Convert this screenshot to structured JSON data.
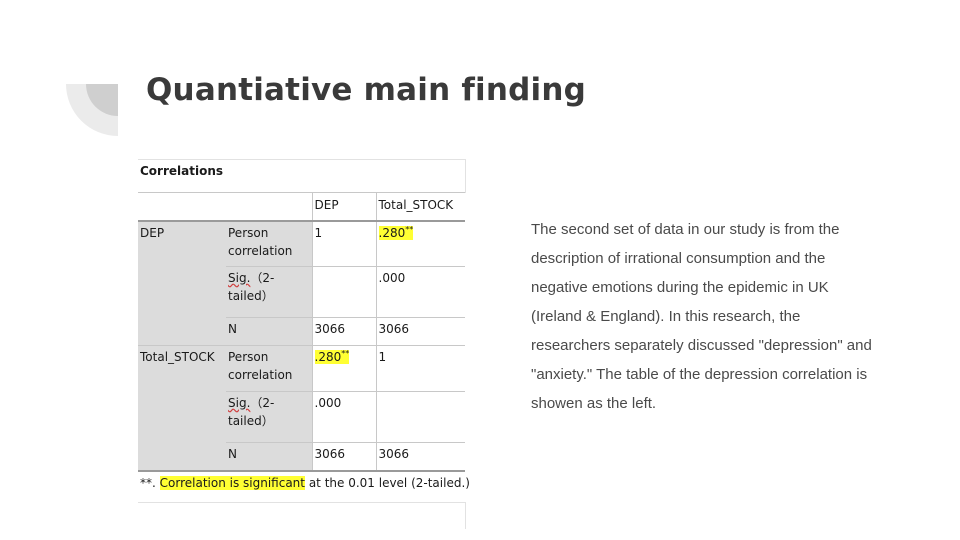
{
  "slide": {
    "title": "Quantiative main finding",
    "body_text": "The second set of data in our study is from the description of irrational consumption and the negative emotions during the epidemic in UK (Ireland & England). In this research, the researchers separately discussed \"depression\" and \"anxiety.\" The table of the depression correlation is showen as the left."
  },
  "table": {
    "caption": "Correlations",
    "col_headers": [
      "DEP",
      "Total_STOCK"
    ],
    "row_groups": [
      {
        "label": "DEP",
        "rows": [
          {
            "stat": "Person correlation",
            "dep": "1",
            "stock": ".280",
            "stock_sup": "**"
          },
          {
            "stat_sig": "Sig.",
            "stat_rest": "（2-tailed）",
            "dep": "",
            "stock": ".000"
          },
          {
            "stat": "N",
            "dep": "3066",
            "stock": "3066"
          }
        ]
      },
      {
        "label": "Total_STOCK",
        "rows": [
          {
            "stat": "Person correlation",
            "dep": ".280",
            "dep_sup": "**",
            "stock": "1"
          },
          {
            "stat_sig": "Sig.",
            "stat_rest": "（2-tailed）",
            "dep": ".000",
            "stock": ""
          },
          {
            "stat": "N",
            "dep": "3066",
            "stock": "3066"
          }
        ]
      }
    ],
    "footnote_mark": "**. ",
    "footnote_highlight": "Correlation is significant",
    "footnote_rest": " at the 0.01 level (2-tailed.)"
  },
  "colors": {
    "highlight": "#ffff33",
    "label_gray": "#dcdcdc",
    "title_text": "#3a3a3a",
    "body_text": "#4a4a4a"
  }
}
